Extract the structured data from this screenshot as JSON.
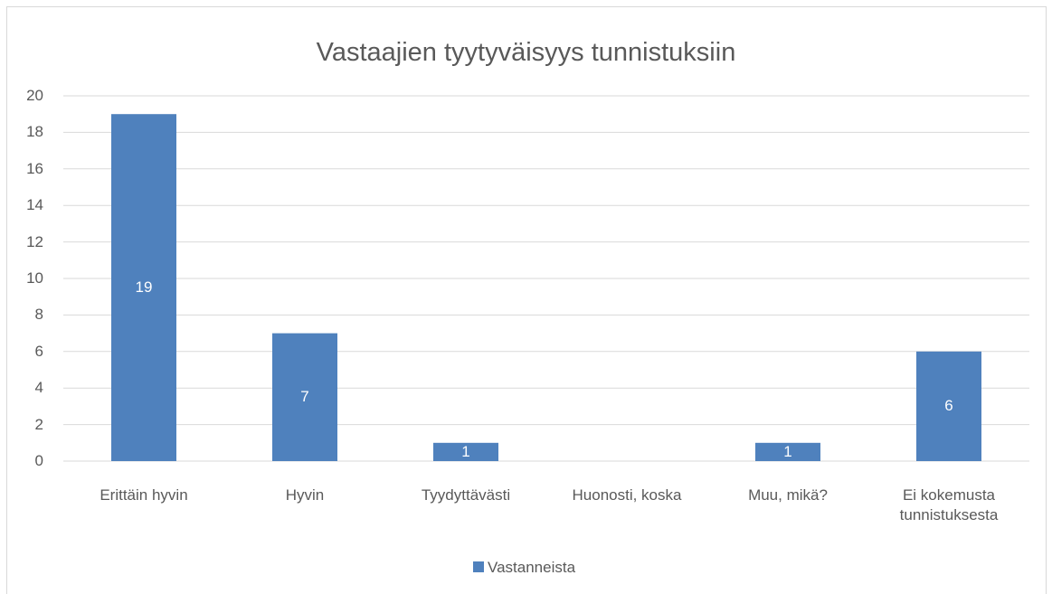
{
  "chart_data": {
    "type": "bar",
    "title": "Vastaajien tyytyväisyys tunnistuksiin",
    "categories": [
      "Erittäin hyvin",
      "Hyvin",
      "Tyydyttävästi",
      "Huonosti, koska",
      "Muu, mikä?",
      "Ei kokemusta tunnistuksesta"
    ],
    "series": [
      {
        "name": "Vastanneista",
        "color": "#4f81bd",
        "values": [
          19,
          7,
          1,
          0,
          1,
          6
        ]
      }
    ],
    "ylim": [
      0,
      20
    ],
    "yticks": [
      0,
      2,
      4,
      6,
      8,
      10,
      12,
      14,
      16,
      18,
      20
    ],
    "grid": true,
    "legend": "bottom",
    "data_labels": true
  }
}
